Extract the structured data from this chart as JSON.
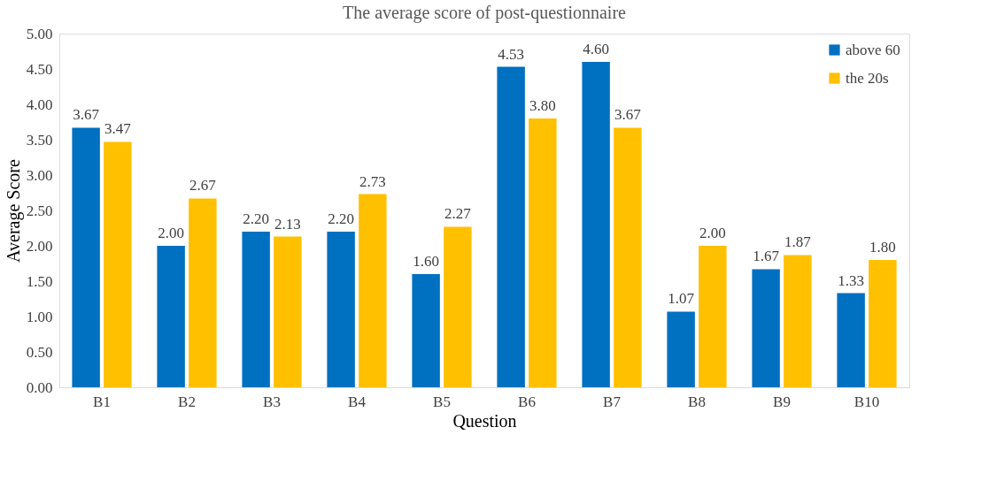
{
  "chart_data": {
    "type": "bar",
    "title": "The average score of post-questionnaire",
    "xlabel": "Question",
    "ylabel": "Average Score",
    "categories": [
      "B1",
      "B2",
      "B3",
      "B4",
      "B5",
      "B6",
      "B7",
      "B8",
      "B9",
      "B10"
    ],
    "series": [
      {
        "name": "above 60",
        "color": "#0070c0",
        "values": [
          3.67,
          2.0,
          2.2,
          2.2,
          1.6,
          4.53,
          4.6,
          1.07,
          1.67,
          1.33
        ],
        "value_labels": [
          "3.67",
          "2.00",
          "2.20",
          "2.20",
          "1.60",
          "4.53",
          "4.60",
          "1.07",
          "1.67",
          "1.33"
        ]
      },
      {
        "name": "the 20s",
        "color": "#ffc000",
        "values": [
          3.47,
          2.67,
          2.13,
          2.73,
          2.27,
          3.8,
          3.67,
          2.0,
          1.87,
          1.8
        ],
        "value_labels": [
          "3.47",
          "2.67",
          "2.13",
          "2.73",
          "2.27",
          "3.80",
          "3.67",
          "2.00",
          "1.87",
          "1.80"
        ]
      }
    ],
    "ylim": [
      0,
      5
    ],
    "yticks": [
      {
        "value": 0,
        "label": "0.00"
      },
      {
        "value": 0.5,
        "label": "0.50"
      },
      {
        "value": 1,
        "label": "1.00"
      },
      {
        "value": 1.5,
        "label": "1.50"
      },
      {
        "value": 2,
        "label": "2.00"
      },
      {
        "value": 2.5,
        "label": "2.50"
      },
      {
        "value": 3,
        "label": "3.00"
      },
      {
        "value": 3.5,
        "label": "3.50"
      },
      {
        "value": 4,
        "label": "4.00"
      },
      {
        "value": 4.5,
        "label": "4.50"
      },
      {
        "value": 5,
        "label": "5.00"
      }
    ],
    "grid": false,
    "legend": "top right"
  }
}
